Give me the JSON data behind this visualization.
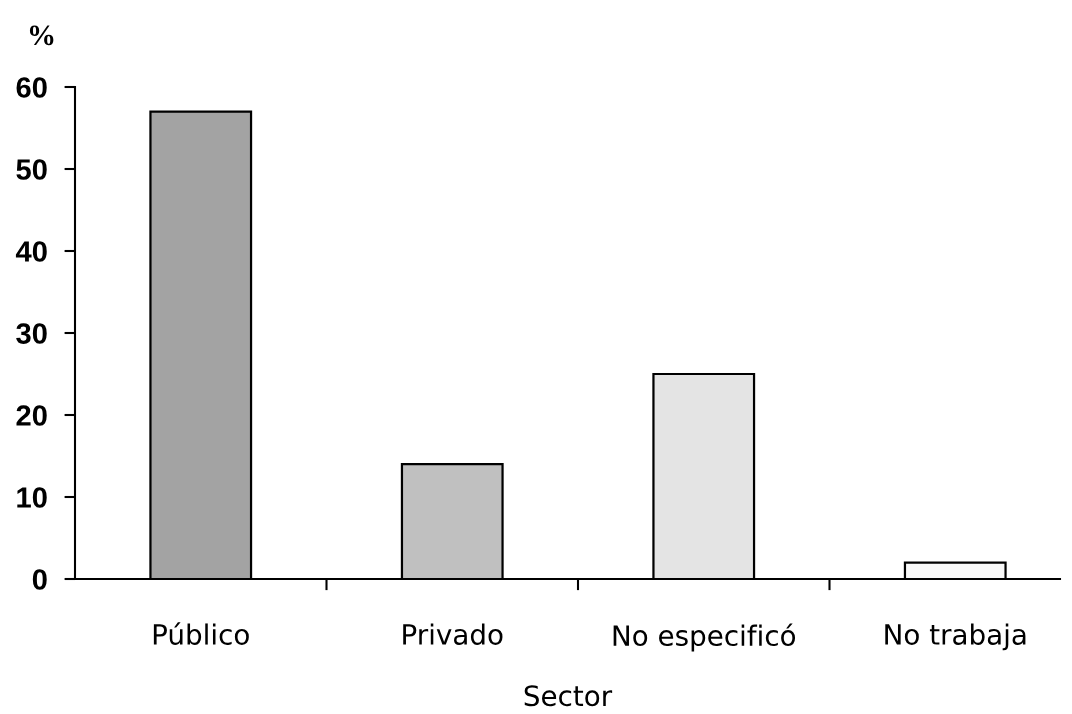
{
  "chart_data": {
    "type": "bar",
    "ylabel": "%",
    "xlabel": "Sector",
    "categories": [
      "Público",
      "Privado",
      "No especificó",
      "No trabaja"
    ],
    "values": [
      57,
      14,
      25,
      2
    ],
    "colors": [
      "#a3a3a3",
      "#c0c0c0",
      "#e4e4e4",
      "#f8f8f8"
    ],
    "ylim": [
      0,
      60
    ],
    "yticks": [
      0,
      10,
      20,
      30,
      40,
      50,
      60
    ]
  }
}
